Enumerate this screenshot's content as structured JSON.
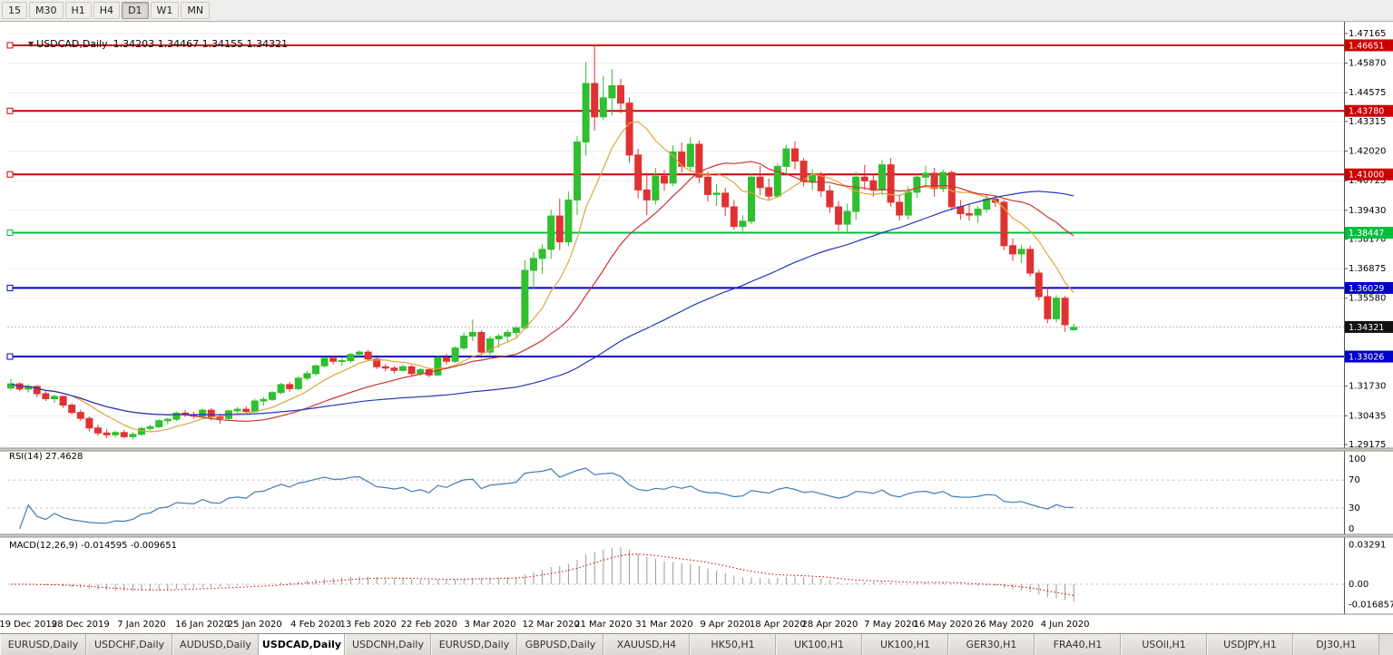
{
  "toolbar": {
    "timeframes": [
      {
        "label": "15",
        "active": false
      },
      {
        "label": "M30",
        "active": false
      },
      {
        "label": "H1",
        "active": false
      },
      {
        "label": "H4",
        "active": false
      },
      {
        "label": "D1",
        "active": true
      },
      {
        "label": "W1",
        "active": false
      },
      {
        "label": "MN",
        "active": false
      }
    ]
  },
  "chart_header": {
    "symbol": "USDCAD,Daily",
    "ohlc": "1.34203 1.34467 1.34155 1.34321"
  },
  "chart_data": {
    "type": "candlestick",
    "title": "USDCAD,Daily",
    "bull_color": "#2fbf2f",
    "bear_color": "#df3333",
    "y_ticks": [
      1.47165,
      1.4587,
      1.44575,
      1.43315,
      1.4202,
      1.40725,
      1.3943,
      1.3817,
      1.36875,
      1.3558,
      1.3173,
      1.30435,
      1.29175
    ],
    "hlines": [
      {
        "price": 1.46651,
        "color": "#cc0000",
        "role": "resistance"
      },
      {
        "price": 1.4378,
        "color": "#cc0000",
        "role": "resistance"
      },
      {
        "price": 1.41,
        "color": "#cc0000",
        "role": "resistance"
      },
      {
        "price": 1.38447,
        "color": "#00bf40",
        "role": "level"
      },
      {
        "price": 1.36029,
        "color": "#0000c8",
        "role": "support"
      },
      {
        "price": 1.33026,
        "color": "#0000c8",
        "role": "support"
      }
    ],
    "current_price": 1.34321,
    "current_price_badge_color": "#111111",
    "moving_averages": [
      {
        "period": 8,
        "color": "#dfa53f"
      },
      {
        "period": 21,
        "color": "#cc3333"
      },
      {
        "period": 60,
        "color": "#2438b8"
      }
    ],
    "x_labels": [
      {
        "text": "19 Dec 2019",
        "i": 2
      },
      {
        "text": "28 Dec 2019",
        "i": 8
      },
      {
        "text": "7 Jan 2020",
        "i": 15
      },
      {
        "text": "16 Jan 2020",
        "i": 22
      },
      {
        "text": "25 Jan 2020",
        "i": 28
      },
      {
        "text": "4 Feb 2020",
        "i": 35
      },
      {
        "text": "13 Feb 2020",
        "i": 41
      },
      {
        "text": "22 Feb 2020",
        "i": 48
      },
      {
        "text": "3 Mar 2020",
        "i": 55
      },
      {
        "text": "12 Mar 2020",
        "i": 62
      },
      {
        "text": "21 Mar 2020",
        "i": 68
      },
      {
        "text": "31 Mar 2020",
        "i": 75
      },
      {
        "text": "9 Apr 2020",
        "i": 82
      },
      {
        "text": "18 Apr 2020",
        "i": 88
      },
      {
        "text": "28 Apr 2020",
        "i": 94
      },
      {
        "text": "7 May 2020",
        "i": 101
      },
      {
        "text": "16 May 2020",
        "i": 107
      },
      {
        "text": "26 May 2020",
        "i": 114
      },
      {
        "text": "4 Jun 2020",
        "i": 121
      }
    ],
    "rsi": {
      "label": "RSI(14) 27.4628",
      "period": 14,
      "value": 27.4628,
      "color": "#3e7bb6",
      "levels": [
        100,
        70,
        30,
        0
      ]
    },
    "macd": {
      "label": "MACD(12,26,9) -0.014595 -0.009651",
      "fast": 12,
      "slow": 26,
      "signal": 9,
      "main_value": -0.014595,
      "signal_value": -0.009651,
      "bar_color": "#9a9a9a",
      "signal_color": "#cc0000",
      "y_ticks": [
        "0.03291",
        "0.00",
        "-0.016857"
      ],
      "y_tick_values": [
        0.03291,
        0,
        -0.016857
      ]
    },
    "candles": [
      [
        1.3165,
        1.3205,
        1.3155,
        1.3183
      ],
      [
        1.3183,
        1.319,
        1.315,
        1.316
      ],
      [
        1.316,
        1.318,
        1.3145,
        1.3172
      ],
      [
        1.3172,
        1.3178,
        1.3125,
        1.314
      ],
      [
        1.314,
        1.3152,
        1.3108,
        1.3118
      ],
      [
        1.3118,
        1.3135,
        1.31,
        1.3128
      ],
      [
        1.3128,
        1.3132,
        1.3078,
        1.309
      ],
      [
        1.309,
        1.3098,
        1.3048,
        1.3058
      ],
      [
        1.3058,
        1.307,
        1.302,
        1.3032
      ],
      [
        1.3032,
        1.304,
        1.2975,
        1.299
      ],
      [
        1.299,
        1.3005,
        1.2955,
        1.2968
      ],
      [
        1.2968,
        1.2985,
        1.2945,
        1.296
      ],
      [
        1.296,
        1.2978,
        1.2948,
        1.297
      ],
      [
        1.297,
        1.2982,
        1.2945,
        1.2952
      ],
      [
        1.2952,
        1.2972,
        1.294,
        1.2962
      ],
      [
        1.2962,
        1.2995,
        1.2955,
        1.2988
      ],
      [
        1.2988,
        1.3005,
        1.2978,
        1.2995
      ],
      [
        1.2995,
        1.3028,
        1.299,
        1.3022
      ],
      [
        1.3022,
        1.3035,
        1.3005,
        1.3028
      ],
      [
        1.3028,
        1.3062,
        1.302,
        1.3055
      ],
      [
        1.3055,
        1.3068,
        1.3038,
        1.3048
      ],
      [
        1.3048,
        1.306,
        1.303,
        1.3042
      ],
      [
        1.3042,
        1.3075,
        1.3035,
        1.3068
      ],
      [
        1.3068,
        1.3078,
        1.3022,
        1.3038
      ],
      [
        1.3038,
        1.3052,
        1.3008,
        1.3032
      ],
      [
        1.3032,
        1.3072,
        1.3025,
        1.3065
      ],
      [
        1.3065,
        1.3082,
        1.3055,
        1.3072
      ],
      [
        1.3072,
        1.3085,
        1.305,
        1.3062
      ],
      [
        1.3062,
        1.3118,
        1.3058,
        1.3108
      ],
      [
        1.3108,
        1.3125,
        1.3088,
        1.3115
      ],
      [
        1.3115,
        1.3152,
        1.3108,
        1.3145
      ],
      [
        1.3145,
        1.3188,
        1.3138,
        1.318
      ],
      [
        1.318,
        1.3192,
        1.3148,
        1.3162
      ],
      [
        1.3162,
        1.3215,
        1.3155,
        1.3208
      ],
      [
        1.3208,
        1.324,
        1.3198,
        1.3228
      ],
      [
        1.3228,
        1.3268,
        1.322,
        1.3262
      ],
      [
        1.3262,
        1.3302,
        1.3255,
        1.3295
      ],
      [
        1.3295,
        1.3308,
        1.3268,
        1.3282
      ],
      [
        1.3282,
        1.3298,
        1.3262,
        1.3285
      ],
      [
        1.3285,
        1.3318,
        1.3275,
        1.3312
      ],
      [
        1.3312,
        1.333,
        1.3295,
        1.3322
      ],
      [
        1.3322,
        1.3332,
        1.3282,
        1.3292
      ],
      [
        1.3292,
        1.3298,
        1.3248,
        1.3258
      ],
      [
        1.3258,
        1.327,
        1.3238,
        1.3252
      ],
      [
        1.3252,
        1.3262,
        1.3228,
        1.3242
      ],
      [
        1.3242,
        1.3268,
        1.3235,
        1.3258
      ],
      [
        1.3258,
        1.3265,
        1.3215,
        1.3228
      ],
      [
        1.3228,
        1.3252,
        1.3218,
        1.3245
      ],
      [
        1.3245,
        1.3255,
        1.3212,
        1.3222
      ],
      [
        1.3222,
        1.3308,
        1.3218,
        1.3298
      ],
      [
        1.3298,
        1.3315,
        1.3268,
        1.3282
      ],
      [
        1.3282,
        1.3348,
        1.3275,
        1.334
      ],
      [
        1.334,
        1.3408,
        1.3332,
        1.3392
      ],
      [
        1.3392,
        1.3465,
        1.337,
        1.3408
      ],
      [
        1.3408,
        1.3418,
        1.3308,
        1.3322
      ],
      [
        1.3322,
        1.3392,
        1.3302,
        1.338
      ],
      [
        1.338,
        1.3402,
        1.3342,
        1.3392
      ],
      [
        1.3392,
        1.3422,
        1.3365,
        1.3408
      ],
      [
        1.3408,
        1.3438,
        1.3388,
        1.3428
      ],
      [
        1.3428,
        1.3725,
        1.342,
        1.368
      ],
      [
        1.368,
        1.376,
        1.3602,
        1.3732
      ],
      [
        1.3732,
        1.3795,
        1.3665,
        1.3772
      ],
      [
        1.3772,
        1.3945,
        1.373,
        1.3918
      ],
      [
        1.3918,
        1.3995,
        1.3768,
        1.3805
      ],
      [
        1.3805,
        1.4025,
        1.3785,
        1.3988
      ],
      [
        1.3988,
        1.4268,
        1.3922,
        1.4242
      ],
      [
        1.4242,
        1.4592,
        1.4182,
        1.4498
      ],
      [
        1.4498,
        1.4669,
        1.4292,
        1.4352
      ],
      [
        1.4352,
        1.4532,
        1.4338,
        1.4435
      ],
      [
        1.4435,
        1.456,
        1.4358,
        1.4488
      ],
      [
        1.4488,
        1.4518,
        1.4368,
        1.4412
      ],
      [
        1.4412,
        1.4438,
        1.415,
        1.4185
      ],
      [
        1.4185,
        1.4212,
        1.3995,
        1.4032
      ],
      [
        1.4032,
        1.4108,
        1.3922,
        1.3988
      ],
      [
        1.3988,
        1.4128,
        1.3968,
        1.4092
      ],
      [
        1.4092,
        1.412,
        1.4028,
        1.4062
      ],
      [
        1.4062,
        1.4228,
        1.4048,
        1.4198
      ],
      [
        1.4198,
        1.424,
        1.4108,
        1.4135
      ],
      [
        1.4135,
        1.4262,
        1.4112,
        1.4232
      ],
      [
        1.4232,
        1.4248,
        1.4062,
        1.4088
      ],
      [
        1.4088,
        1.4112,
        1.3982,
        1.4012
      ],
      [
        1.4012,
        1.4058,
        1.3962,
        1.4018
      ],
      [
        1.4018,
        1.4042,
        1.3918,
        1.3958
      ],
      [
        1.3958,
        1.3988,
        1.3858,
        1.3872
      ],
      [
        1.3872,
        1.3922,
        1.3852,
        1.3895
      ],
      [
        1.3895,
        1.4105,
        1.3882,
        1.4088
      ],
      [
        1.4088,
        1.4138,
        1.4008,
        1.4042
      ],
      [
        1.4042,
        1.4082,
        1.3988,
        1.4005
      ],
      [
        1.4005,
        1.4148,
        1.3998,
        1.4135
      ],
      [
        1.4135,
        1.4228,
        1.4102,
        1.4212
      ],
      [
        1.4212,
        1.4245,
        1.4122,
        1.4158
      ],
      [
        1.4158,
        1.4172,
        1.4048,
        1.4068
      ],
      [
        1.4068,
        1.4122,
        1.4032,
        1.4098
      ],
      [
        1.4098,
        1.4112,
        1.4002,
        1.4028
      ],
      [
        1.4028,
        1.4052,
        1.3932,
        1.3958
      ],
      [
        1.3958,
        1.3982,
        1.3852,
        1.3882
      ],
      [
        1.3882,
        1.3972,
        1.3848,
        1.3938
      ],
      [
        1.3938,
        1.4112,
        1.3902,
        1.4088
      ],
      [
        1.4088,
        1.4142,
        1.4032,
        1.4072
      ],
      [
        1.4072,
        1.4098,
        1.4002,
        1.4032
      ],
      [
        1.4032,
        1.4162,
        1.4008,
        1.4142
      ],
      [
        1.4142,
        1.4172,
        1.3958,
        1.3978
      ],
      [
        1.3978,
        1.4012,
        1.3898,
        1.3922
      ],
      [
        1.3922,
        1.4048,
        1.3902,
        1.4022
      ],
      [
        1.4022,
        1.4102,
        1.3998,
        1.4088
      ],
      [
        1.4088,
        1.4138,
        1.4042,
        1.4105
      ],
      [
        1.4105,
        1.4128,
        1.4002,
        1.4038
      ],
      [
        1.4038,
        1.4122,
        1.4022,
        1.4108
      ],
      [
        1.4108,
        1.4118,
        1.3942,
        1.3958
      ],
      [
        1.3958,
        1.3988,
        1.3902,
        1.3928
      ],
      [
        1.3928,
        1.3972,
        1.3898,
        1.3922
      ],
      [
        1.3922,
        1.3962,
        1.3888,
        1.3948
      ],
      [
        1.3948,
        1.4012,
        1.3932,
        1.3992
      ],
      [
        1.3992,
        1.4008,
        1.3958,
        1.3978
      ],
      [
        1.3978,
        1.3988,
        1.3768,
        1.3788
      ],
      [
        1.3788,
        1.3818,
        1.3722,
        1.3752
      ],
      [
        1.3752,
        1.3792,
        1.3712,
        1.3772
      ],
      [
        1.3772,
        1.3788,
        1.3652,
        1.3668
      ],
      [
        1.3668,
        1.3682,
        1.3548,
        1.3565
      ],
      [
        1.3565,
        1.3605,
        1.3448,
        1.3468
      ],
      [
        1.3468,
        1.3572,
        1.3452,
        1.3558
      ],
      [
        1.3558,
        1.3568,
        1.3412,
        1.3442
      ],
      [
        1.34203,
        1.34467,
        1.34155,
        1.34321
      ]
    ]
  },
  "tabs": [
    {
      "label": "EURUSD,Daily",
      "active": false
    },
    {
      "label": "USDCHF,Daily",
      "active": false
    },
    {
      "label": "AUDUSD,Daily",
      "active": false
    },
    {
      "label": "USDCAD,Daily",
      "active": true
    },
    {
      "label": "USDCNH,Daily",
      "active": false
    },
    {
      "label": "EURUSD,Daily",
      "active": false
    },
    {
      "label": "GBPUSD,Daily",
      "active": false
    },
    {
      "label": "XAUUSD,H4",
      "active": false
    },
    {
      "label": "HK50,H1",
      "active": false
    },
    {
      "label": "UK100,H1",
      "active": false
    },
    {
      "label": "UK100,H1",
      "active": false
    },
    {
      "label": "GER30,H1",
      "active": false
    },
    {
      "label": "FRA40,H1",
      "active": false
    },
    {
      "label": "USOil,H1",
      "active": false
    },
    {
      "label": "USDJPY,H1",
      "active": false
    },
    {
      "label": "DJ30,H1",
      "active": false
    }
  ]
}
